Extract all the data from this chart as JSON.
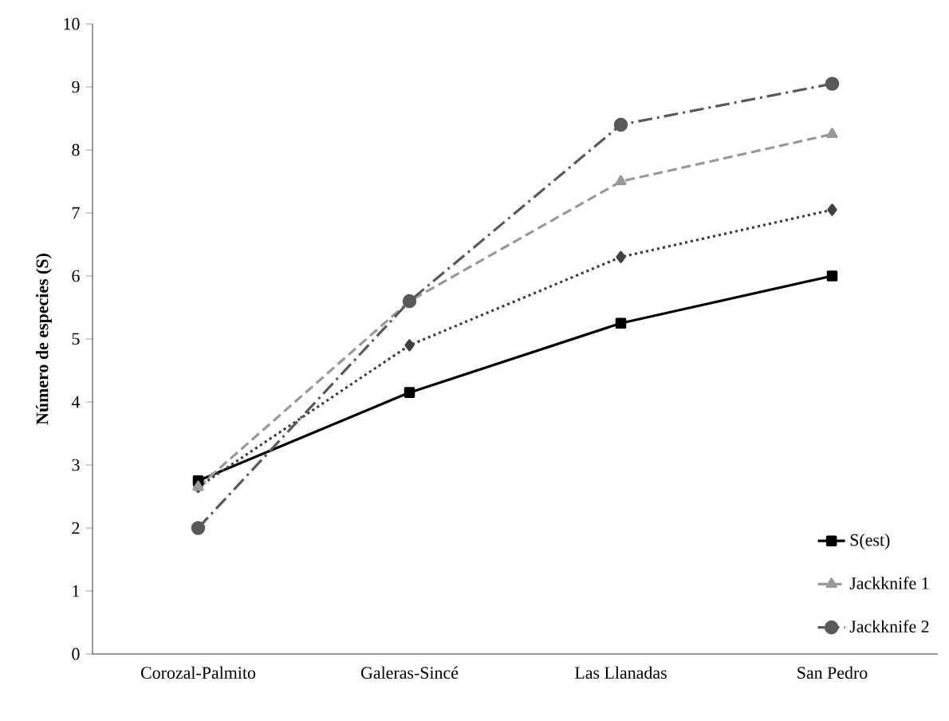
{
  "chart_data": {
    "type": "line",
    "ylabel": "Número de especies (S)",
    "categories": [
      "Corozal-Palmito",
      "Galeras-Sincé",
      "Las Llanadas",
      "San Pedro"
    ],
    "ylim": [
      0,
      10
    ],
    "yticks": [
      0,
      1,
      2,
      3,
      4,
      5,
      6,
      7,
      8,
      9,
      10
    ],
    "legend": "bottom right",
    "grid": false,
    "series": [
      {
        "name": "S(est)",
        "color": "#000000",
        "marker": "square",
        "line_style": "solid",
        "values": [
          2.75,
          4.15,
          5.25,
          6.0
        ]
      },
      {
        "color": "#404040",
        "marker": "diamond",
        "line_style": "dotted",
        "values": [
          2.65,
          4.9,
          6.3,
          7.05
        ]
      },
      {
        "name": "Jackknife 1",
        "color": "#999999",
        "marker": "triangle",
        "line_style": "dashed",
        "values": [
          2.65,
          5.6,
          7.5,
          8.25
        ]
      },
      {
        "name": "Jackknife 2",
        "color": "#595959",
        "marker": "circle",
        "line_style": "dashdot",
        "values": [
          2.0,
          5.6,
          8.4,
          9.05
        ]
      }
    ]
  }
}
